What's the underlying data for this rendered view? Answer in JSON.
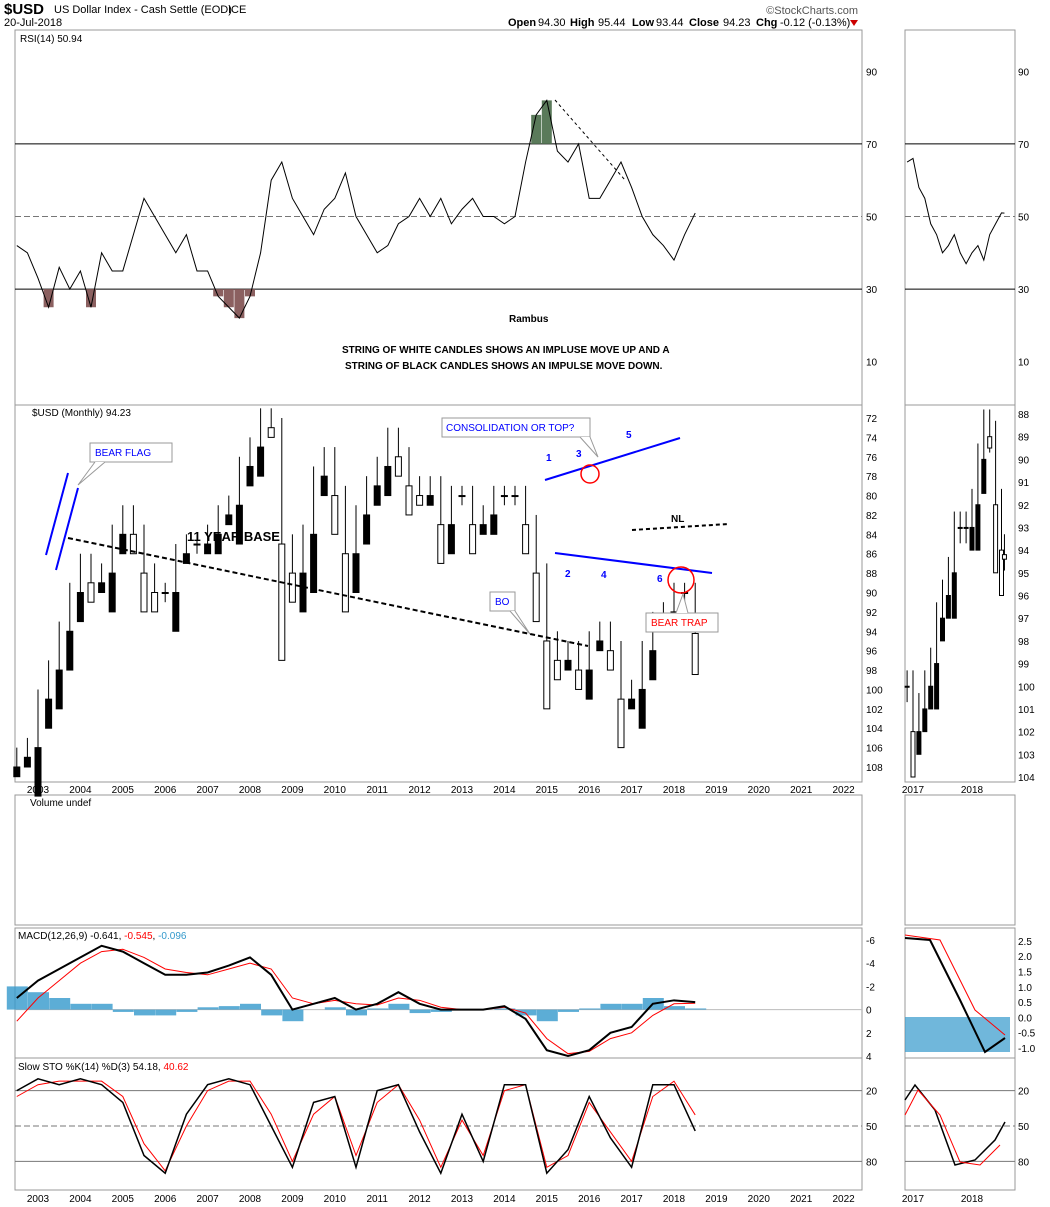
{
  "header": {
    "symbol": "$USD",
    "name": "US Dollar Index - Cash Settle (EOD)",
    "exchange": "ICE",
    "date": "20-Jul-2018",
    "brand": "©StockCharts.com",
    "open_label": "Open",
    "open": "94.30",
    "high_label": "High",
    "high": "95.44",
    "low_label": "Low",
    "low": "93.44",
    "close_label": "Close",
    "close": "94.23",
    "chg_label": "Chg",
    "chg": "-0.12 (-0.13%)"
  },
  "colors": {
    "line": "#000000",
    "signal": "#ff0000",
    "histogram": "#3399cc",
    "annotation": "#0000ff",
    "rsi_overbought": "#5a7a5a",
    "rsi_oversold": "#8b6060"
  },
  "chart_data": [
    {
      "type": "line",
      "panel": "RSI",
      "title": "RSI(14) 50.94",
      "ylim": [
        0,
        100
      ],
      "yticks": [
        10,
        30,
        50,
        70,
        90
      ],
      "x": [
        2002.5,
        2002.75,
        2003,
        2003.25,
        2003.5,
        2003.75,
        2004,
        2004.25,
        2004.5,
        2004.75,
        2005,
        2005.25,
        2005.5,
        2005.75,
        2006,
        2006.25,
        2006.5,
        2006.75,
        2007,
        2007.25,
        2007.5,
        2007.75,
        2008,
        2008.25,
        2008.5,
        2008.75,
        2009,
        2009.25,
        2009.5,
        2009.75,
        2010,
        2010.25,
        2010.5,
        2010.75,
        2011,
        2011.25,
        2011.5,
        2011.75,
        2012,
        2012.25,
        2012.5,
        2012.75,
        2013,
        2013.25,
        2013.5,
        2013.75,
        2014,
        2014.25,
        2014.5,
        2014.75,
        2015,
        2015.25,
        2015.5,
        2015.75,
        2016,
        2016.25,
        2016.5,
        2016.75,
        2017,
        2017.25,
        2017.5,
        2017.75,
        2018,
        2018.25,
        2018.5
      ],
      "values": [
        42,
        40,
        33,
        25,
        36,
        30,
        35,
        25,
        40,
        35,
        35,
        45,
        55,
        50,
        45,
        40,
        45,
        35,
        35,
        28,
        25,
        22,
        28,
        40,
        60,
        65,
        55,
        50,
        45,
        52,
        55,
        62,
        50,
        45,
        40,
        42,
        48,
        50,
        55,
        50,
        55,
        48,
        52,
        55,
        50,
        50,
        48,
        50,
        65,
        78,
        82,
        68,
        65,
        70,
        55,
        55,
        60,
        65,
        58,
        50,
        45,
        42,
        38,
        45,
        50.94
      ]
    },
    {
      "type": "candlestick",
      "panel": "Price",
      "title": "$USD (Monthly) 94.23",
      "ylim": [
        71,
        109
      ],
      "yticks": [
        72,
        74,
        76,
        78,
        80,
        82,
        84,
        86,
        88,
        90,
        92,
        94,
        96,
        98,
        100,
        102,
        104,
        106,
        108
      ],
      "xticks": [
        "2003",
        "2004",
        "2005",
        "2006",
        "2007",
        "2008",
        "2009",
        "2010",
        "2011",
        "2012",
        "2013",
        "2014",
        "2015",
        "2016",
        "2017",
        "2018",
        "2019",
        "2020",
        "2021",
        "2022"
      ],
      "x": [
        2002.5,
        2002.75,
        2003,
        2003.25,
        2003.5,
        2003.75,
        2004,
        2004.25,
        2004.5,
        2004.75,
        2005,
        2005.25,
        2005.5,
        2005.75,
        2006,
        2006.25,
        2006.5,
        2006.75,
        2007,
        2007.25,
        2007.5,
        2007.75,
        2008,
        2008.25,
        2008.5,
        2008.75,
        2009,
        2009.25,
        2009.5,
        2009.75,
        2010,
        2010.25,
        2010.5,
        2010.75,
        2011,
        2011.25,
        2011.5,
        2011.75,
        2012,
        2012.25,
        2012.5,
        2012.75,
        2013,
        2013.25,
        2013.5,
        2013.75,
        2014,
        2014.25,
        2014.5,
        2014.75,
        2015,
        2015.25,
        2015.5,
        2015.75,
        2016,
        2016.25,
        2016.5,
        2016.75,
        2017,
        2017.25,
        2017.5,
        2017.75,
        2018,
        2018.25,
        2018.5
      ],
      "close": [
        107,
        106,
        101,
        98,
        94,
        90,
        87,
        89,
        88,
        84,
        82,
        84,
        88,
        90,
        90,
        86,
        85,
        85,
        84,
        82,
        81,
        77,
        75,
        72,
        73,
        85,
        88,
        84,
        78,
        76,
        80,
        86,
        82,
        79,
        77,
        74,
        76,
        79,
        80,
        79,
        83,
        80,
        80,
        83,
        82,
        80,
        80,
        80,
        83,
        88,
        95,
        97,
        96,
        98,
        95,
        94,
        96,
        101,
        100,
        96,
        93,
        92,
        90,
        90,
        94.23
      ]
    },
    {
      "type": "bar",
      "panel": "Volume",
      "title": "Volume undef"
    },
    {
      "type": "line",
      "panel": "MACD",
      "title": "MACD(12,26,9)",
      "values_label": [
        "-0.641",
        "-0.545",
        "-0.096"
      ],
      "ylim": [
        -6,
        5
      ],
      "yticks": [
        -6,
        -4,
        -2,
        0,
        2,
        4
      ],
      "x": [
        2002.5,
        2003,
        2003.5,
        2004,
        2004.5,
        2005,
        2005.5,
        2006,
        2006.5,
        2007,
        2007.5,
        2008,
        2008.5,
        2009,
        2009.5,
        2010,
        2010.5,
        2011,
        2011.5,
        2012,
        2012.5,
        2013,
        2013.5,
        2014,
        2014.5,
        2015,
        2015.5,
        2016,
        2016.5,
        2017,
        2017.5,
        2018,
        2018.5
      ],
      "series": [
        {
          "name": "MACD",
          "values": [
            -1,
            -2.5,
            -3.5,
            -4.5,
            -5.5,
            -5,
            -4,
            -3,
            -3,
            -3.2,
            -3.8,
            -4.5,
            -3,
            0,
            -0.5,
            -1,
            0,
            -0.5,
            -1.5,
            -0.5,
            0,
            0,
            0,
            -0.3,
            0.8,
            3.5,
            4,
            3.5,
            2,
            1.5,
            -0.5,
            -0.8,
            -0.64
          ]
        },
        {
          "name": "Signal",
          "values": [
            1,
            -1,
            -2.5,
            -4,
            -5,
            -5.2,
            -4.5,
            -3.5,
            -3.2,
            -3,
            -3.5,
            -4,
            -3.5,
            -1,
            -0.5,
            -0.8,
            -0.5,
            -0.4,
            -1,
            -0.8,
            -0.2,
            0,
            0,
            -0.2,
            0.3,
            2.5,
            3.8,
            3.6,
            2.5,
            2,
            0.5,
            -0.5,
            -0.55
          ]
        },
        {
          "name": "Histogram",
          "values": [
            -2,
            -1.5,
            -1,
            -0.5,
            -0.5,
            0.2,
            0.5,
            0.5,
            0.2,
            -0.2,
            -0.3,
            -0.5,
            0.5,
            1,
            0,
            -0.2,
            0.5,
            -0.1,
            -0.5,
            0.3,
            0.2,
            0,
            0,
            -0.1,
            0.5,
            1,
            0.2,
            -0.1,
            -0.5,
            -0.5,
            -1,
            -0.3,
            -0.1
          ]
        }
      ]
    },
    {
      "type": "line",
      "panel": "Slow STO",
      "title": "Slow STO %K(14) %D(3)",
      "values_label": [
        "54.18",
        "40.62"
      ],
      "ylim": [
        0,
        100
      ],
      "yticks": [
        20,
        50,
        80
      ],
      "x": [
        2002.5,
        2003,
        2003.5,
        2004,
        2004.5,
        2005,
        2005.5,
        2006,
        2006.5,
        2007,
        2007.5,
        2008,
        2008.5,
        2009,
        2009.5,
        2010,
        2010.5,
        2011,
        2011.5,
        2012,
        2012.5,
        2013,
        2013.5,
        2014,
        2014.5,
        2015,
        2015.5,
        2016,
        2016.5,
        2017,
        2017.5,
        2018,
        2018.5
      ],
      "series": [
        {
          "name": "%K",
          "values": [
            20,
            10,
            15,
            10,
            15,
            30,
            75,
            90,
            40,
            15,
            10,
            15,
            50,
            85,
            30,
            25,
            85,
            20,
            15,
            55,
            90,
            40,
            80,
            15,
            15,
            90,
            70,
            25,
            60,
            85,
            15,
            15,
            54.18
          ]
        },
        {
          "name": "%D",
          "values": [
            25,
            15,
            12,
            12,
            12,
            25,
            65,
            88,
            50,
            20,
            12,
            12,
            40,
            80,
            40,
            25,
            75,
            30,
            15,
            45,
            85,
            45,
            75,
            20,
            15,
            85,
            75,
            30,
            55,
            80,
            25,
            12,
            40.62
          ]
        }
      ]
    }
  ],
  "mini": {
    "xticks": [
      "2017",
      "2018"
    ],
    "price_yticks": [
      88,
      89,
      90,
      91,
      92,
      93,
      94,
      95,
      96,
      97,
      98,
      99,
      100,
      101,
      102,
      103,
      104
    ],
    "rsi_yticks": [
      10,
      30,
      50,
      70,
      90
    ],
    "macd_yticks": [
      "-1.0",
      "-0.5",
      "0.0",
      "0.5",
      "1.0",
      "1.5",
      "2.0",
      "2.5"
    ],
    "sto_yticks": [
      20,
      50,
      80
    ],
    "x": [
      2016.9,
      2017.0,
      2017.1,
      2017.2,
      2017.3,
      2017.4,
      2017.5,
      2017.6,
      2017.7,
      2017.8,
      2017.9,
      2018.0,
      2018.1,
      2018.2,
      2018.3,
      2018.4,
      2018.5,
      2018.55
    ],
    "price": [
      100,
      102,
      101,
      100,
      99,
      97,
      96,
      95,
      93,
      93,
      93,
      92,
      90,
      88.5,
      89,
      92,
      94,
      94.2
    ],
    "rsi": [
      65,
      66,
      58,
      55,
      48,
      45,
      40,
      42,
      45,
      40,
      37,
      40,
      42,
      38,
      45,
      48,
      51,
      50.94
    ]
  },
  "annotations": {
    "rambus": "Rambus",
    "note_line1": "STRING OF WHITE CANDLES SHOWS AN IMPLUSE MOVE UP AND A",
    "note_line2": "STRING OF BLACK CANDLES SHOWS AN IMPULSE MOVE DOWN.",
    "bear_flag": "BEAR FLAG",
    "base": "11 YEAR BASE",
    "consolidation": "CONSOLIDATION OR TOP?",
    "bo": "BO",
    "bear_trap": "BEAR TRAP",
    "nl": "NL",
    "p1": "1",
    "p2": "2",
    "p3": "3",
    "p4": "4",
    "p5": "5",
    "p6": "6"
  }
}
